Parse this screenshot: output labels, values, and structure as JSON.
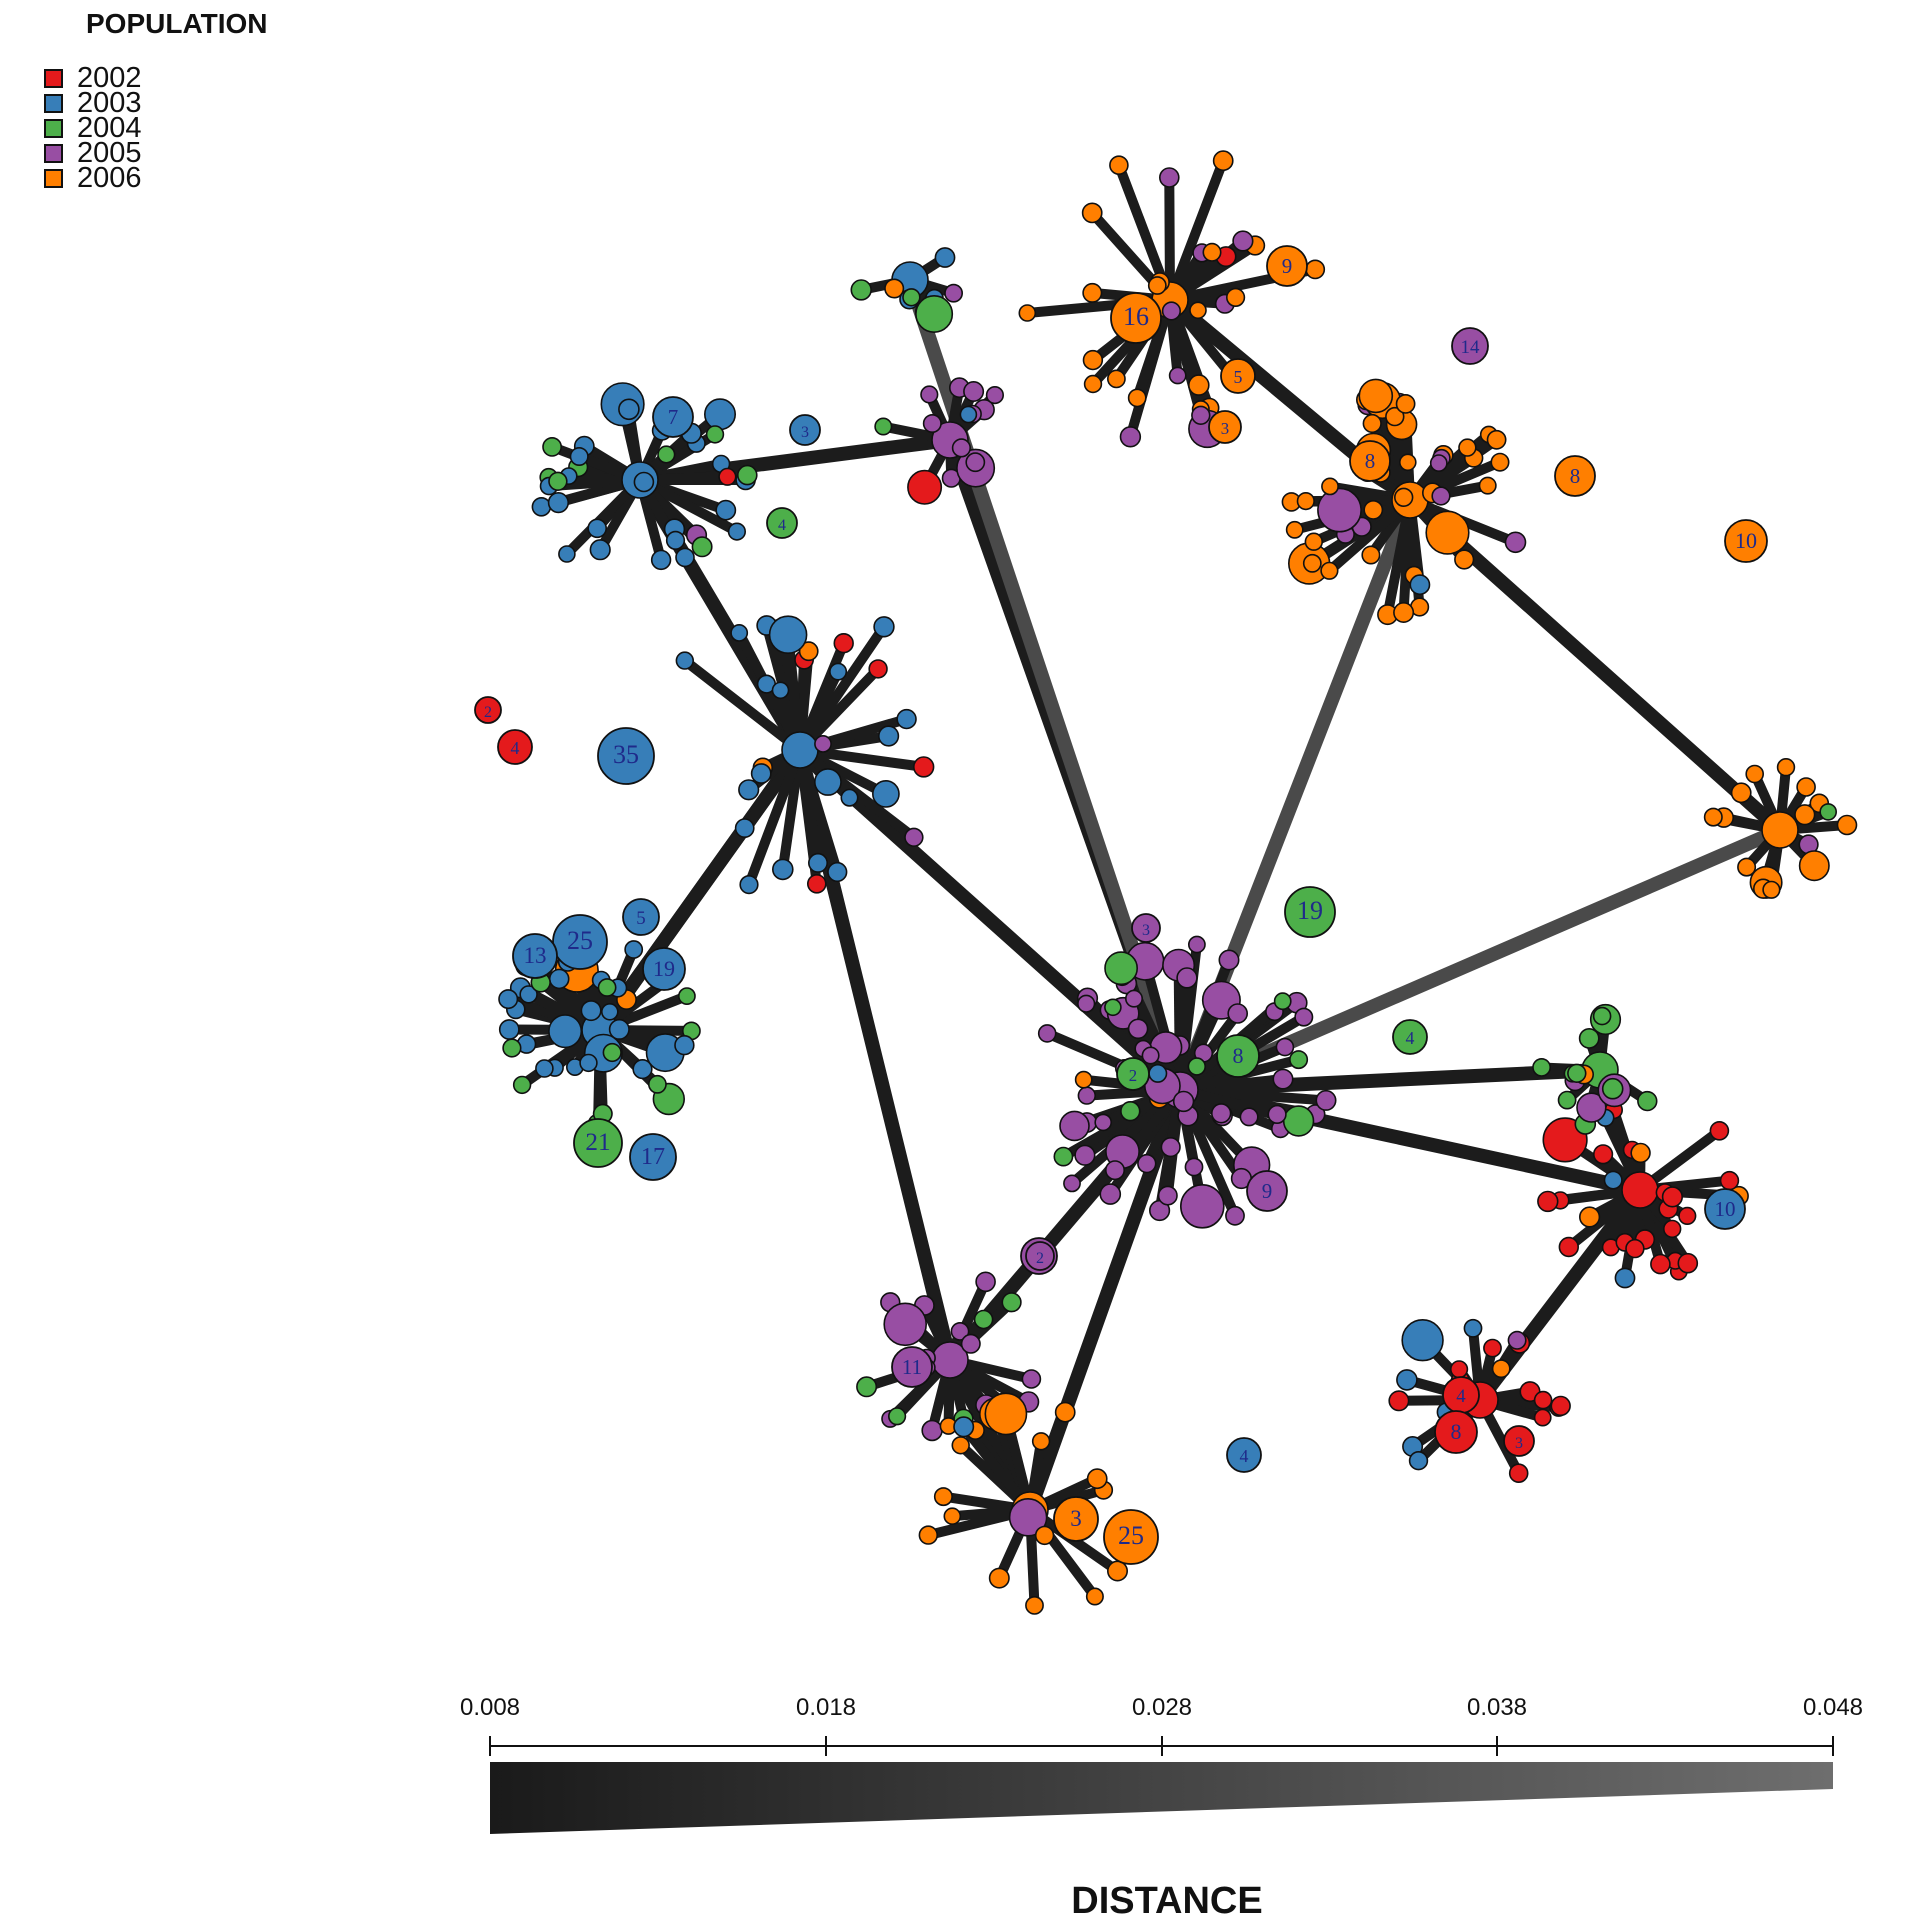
{
  "legend": {
    "title": "POPULATION",
    "items": [
      {
        "label": "2002",
        "color": "#e41a1c"
      },
      {
        "label": "2003",
        "color": "#377eb8"
      },
      {
        "label": "2004",
        "color": "#4daf4a"
      },
      {
        "label": "2005",
        "color": "#984ea3"
      },
      {
        "label": "2006",
        "color": "#ff7f00"
      }
    ]
  },
  "distance_scale": {
    "title": "DISTANCE",
    "ticks": [
      "0.008",
      "0.018",
      "0.028",
      "0.038",
      "0.048"
    ],
    "min": 0.008,
    "max": 0.048,
    "color_start": "#1a1a1a",
    "color_end": "#6e6e6e"
  },
  "network": {
    "node_label_color": "#1f2a8a",
    "edge_color_dark": "#1c1c1c",
    "edge_color_light": "#4a4a4a",
    "labeled_nodes": [
      {
        "label": "7",
        "year": "2003"
      },
      {
        "label": "3",
        "year": "2003"
      },
      {
        "label": "4",
        "year": "2004"
      },
      {
        "label": "35",
        "year": "2003"
      },
      {
        "label": "4",
        "year": "2002"
      },
      {
        "label": "2",
        "year": "2002"
      },
      {
        "label": "25",
        "year": "2003"
      },
      {
        "label": "13",
        "year": "2003"
      },
      {
        "label": "19",
        "year": "2003"
      },
      {
        "label": "21",
        "year": "2004"
      },
      {
        "label": "17",
        "year": "2003"
      },
      {
        "label": "5",
        "year": "2003"
      },
      {
        "label": "19",
        "year": "2004"
      },
      {
        "label": "8",
        "year": "2004"
      },
      {
        "label": "4",
        "year": "2004"
      },
      {
        "label": "3",
        "year": "2005"
      },
      {
        "label": "9",
        "year": "2005"
      },
      {
        "label": "5",
        "year": "2005"
      },
      {
        "label": "11",
        "year": "2005"
      },
      {
        "label": "8",
        "year": "2006"
      },
      {
        "label": "25",
        "year": "2006"
      },
      {
        "label": "3",
        "year": "2006"
      },
      {
        "label": "9",
        "year": "2006"
      },
      {
        "label": "14",
        "year": "2005"
      },
      {
        "label": "10",
        "year": "2006"
      },
      {
        "label": "8",
        "year": "2006"
      },
      {
        "label": "3",
        "year": "2006"
      },
      {
        "label": "16",
        "year": "2006"
      },
      {
        "label": "5",
        "year": "2006"
      },
      {
        "label": "10",
        "year": "2003"
      },
      {
        "label": "4",
        "year": "2003"
      },
      {
        "label": "4",
        "year": "2002"
      },
      {
        "label": "3",
        "year": "2002"
      },
      {
        "label": "8",
        "year": "2002"
      },
      {
        "label": "2",
        "year": "2005"
      },
      {
        "label": "2",
        "year": "2004"
      }
    ]
  }
}
